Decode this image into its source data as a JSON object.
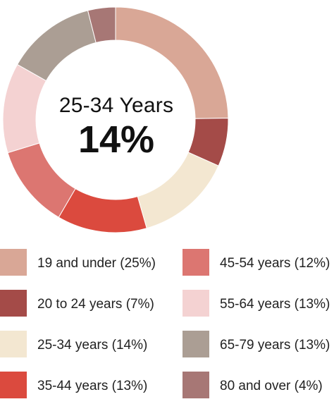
{
  "center": {
    "title": "25-34 Years",
    "value": "14%"
  },
  "chart_data": {
    "type": "pie",
    "donut": true,
    "categories": [
      "19 and under",
      "20 to 24 years",
      "25-34 years",
      "35-44 years",
      "45-54 years",
      "55-64 years",
      "65-79 years",
      "80 and over"
    ],
    "values": [
      25,
      7,
      14,
      13,
      12,
      13,
      13,
      4
    ],
    "unit": "%",
    "colors": [
      "#d9a796",
      "#a44b48",
      "#f3e7d1",
      "#db4a3e",
      "#dc7671",
      "#f4d2d2",
      "#ab9e94",
      "#a77775"
    ],
    "legend": [
      {
        "label": "19 and under (25%)",
        "color": "#d9a796"
      },
      {
        "label": "20 to 24 years (7%)",
        "color": "#a44b48"
      },
      {
        "label": "25-34 years (14%)",
        "color": "#f3e7d1"
      },
      {
        "label": "35-44 years (13%)",
        "color": "#db4a3e"
      },
      {
        "label": "45-54 years (12%)",
        "color": "#dc7671"
      },
      {
        "label": "55-64 years (13%)",
        "color": "#f4d2d2"
      },
      {
        "label": "65-79 years (13%)",
        "color": "#ab9e94"
      },
      {
        "label": "80 and over (4%)",
        "color": "#a77775"
      }
    ],
    "legend_placement": "bottom"
  }
}
